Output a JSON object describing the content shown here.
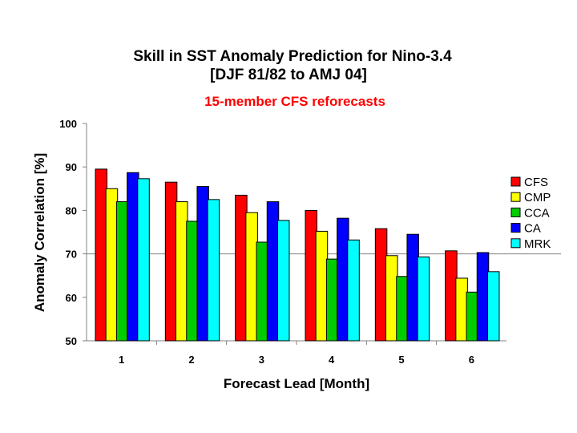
{
  "chart_data": {
    "type": "bar",
    "title_line1": "Skill in SST Anomaly Prediction for Nino-3.4",
    "title_line2": "[DJF 81/82 to AMJ 04]",
    "subtitle": "15-member CFS reforecasts",
    "subtitle_color": "#ff0000",
    "xlabel": "Forecast Lead [Month]",
    "ylabel": "Anomaly Correlation [%]",
    "ylim": [
      50,
      100
    ],
    "yticks": [
      50,
      60,
      70,
      80,
      90,
      100
    ],
    "reference_line": 70,
    "grid": false,
    "legend_position": "right",
    "categories": [
      "1",
      "2",
      "3",
      "4",
      "5",
      "6"
    ],
    "series": [
      {
        "name": "CFS",
        "color": "#ff0000",
        "values": [
          89.5,
          86.5,
          83.5,
          80,
          75.8,
          70.7
        ]
      },
      {
        "name": "CMP",
        "color": "#ffff00",
        "values": [
          85,
          82,
          79.5,
          75.2,
          69.6,
          64.4
        ]
      },
      {
        "name": "CCA",
        "color": "#00cc00",
        "values": [
          82,
          77.5,
          72.7,
          68.8,
          64.8,
          61.2
        ]
      },
      {
        "name": "CA",
        "color": "#0000ff",
        "values": [
          88.7,
          85.5,
          82,
          78.2,
          74.5,
          70.3
        ]
      },
      {
        "name": "MRK",
        "color": "#00ffff",
        "values": [
          87.3,
          82.5,
          77.7,
          73.2,
          69.3,
          65.9
        ]
      }
    ]
  }
}
